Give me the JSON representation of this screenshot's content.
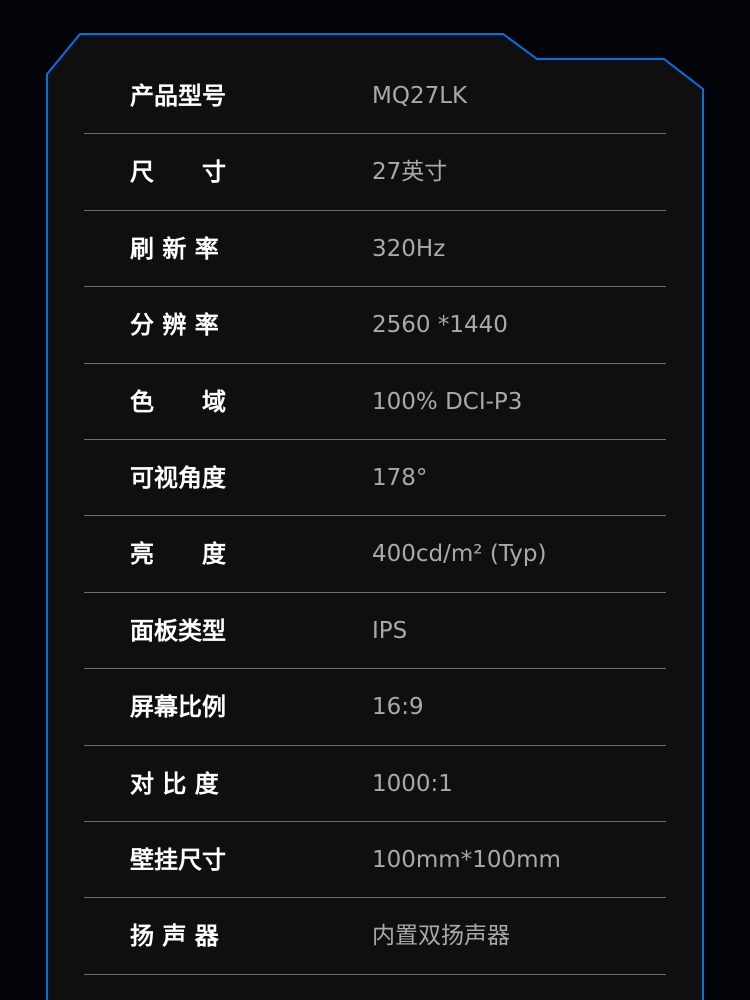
{
  "colors": {
    "border": "#0a6ee0",
    "panel": "#0f0f0f",
    "label": "#ffffff",
    "value": "#a9a9a9"
  },
  "specs": [
    {
      "label": "产品型号",
      "value": "MQ27LK"
    },
    {
      "label": "尺　　寸",
      "value": "27英寸"
    },
    {
      "label": "刷 新 率",
      "value": "320Hz"
    },
    {
      "label": "分 辨 率",
      "value": "2560 *1440"
    },
    {
      "label": "色　　域",
      "value": "100% DCI-P3"
    },
    {
      "label": "可视角度",
      "value": "178°"
    },
    {
      "label": "亮　　度",
      "value": "400cd/m² (Typ)"
    },
    {
      "label": "面板类型",
      "value": "IPS"
    },
    {
      "label": "屏幕比例",
      "value": "16:9"
    },
    {
      "label": "对 比 度",
      "value": "1000:1"
    },
    {
      "label": "壁挂尺寸",
      "value": "100mm*100mm"
    },
    {
      "label": "扬 声 器",
      "value": "内置双扬声器"
    }
  ]
}
